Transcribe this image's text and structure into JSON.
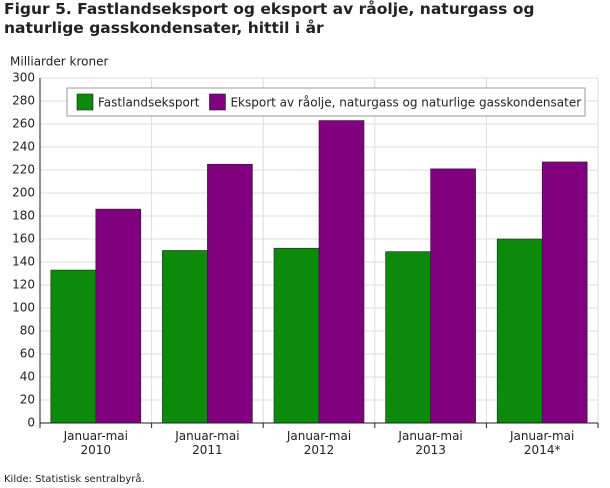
{
  "chart_data": {
    "type": "bar",
    "title": "Figur 5. Fastlandseksport og eksport av råolje, naturgass og naturlige gasskondensater, hittil i år",
    "y_label": "Milliarder kroner",
    "source": "Kilde: Statistisk sentralbyrå.",
    "categories": [
      "Januar-mai 2010",
      "Januar-mai 2011",
      "Januar-mai 2012",
      "Januar-mai 2013",
      "Januar-mai 2014*"
    ],
    "series": [
      {
        "name": "Fastlandseksport",
        "color": "#0b8a0b",
        "values": [
          133,
          150,
          152,
          149,
          160
        ]
      },
      {
        "name": "Eksport av råolje, naturgass og naturlige gasskondensater",
        "color": "#800080",
        "values": [
          186,
          225,
          263,
          221,
          227
        ]
      }
    ],
    "ylim": [
      0,
      300
    ],
    "yticks": [
      0,
      20,
      40,
      60,
      80,
      100,
      120,
      140,
      160,
      180,
      200,
      220,
      240,
      260,
      280,
      300
    ],
    "grid": true,
    "legend": "top"
  }
}
